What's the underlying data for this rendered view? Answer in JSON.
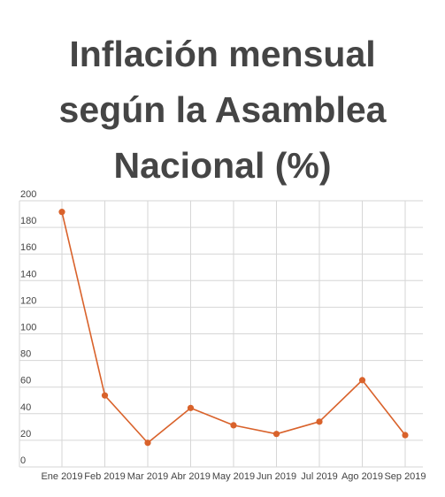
{
  "title_lines": [
    "Inflación mensual",
    "según la Asamblea",
    "Nacional (%)"
  ],
  "colors": {
    "line": "#d9622b",
    "grid": "#d6d6d6",
    "text": "#444444",
    "title": "#454545"
  },
  "chart_data": {
    "type": "line",
    "title": "Inflación mensual según la Asamblea Nacional (%)",
    "xlabel": "",
    "ylabel": "",
    "categories": [
      "Ene 2019",
      "Feb 2019",
      "Mar 2019",
      "Abr 2019",
      "May 2019",
      "Jun 2019",
      "Jul 2019",
      "Ago 2019",
      "Sep 2019"
    ],
    "series": [
      {
        "values": [
          191.6,
          53.7,
          18.1,
          44.3,
          31.3,
          24.8,
          34.0,
          65.2,
          23.9
        ]
      }
    ],
    "ylim": [
      0,
      200
    ],
    "yticks": [
      0,
      20,
      40,
      60,
      80,
      100,
      120,
      140,
      160,
      180,
      200
    ],
    "grid": true,
    "legend": "none"
  }
}
